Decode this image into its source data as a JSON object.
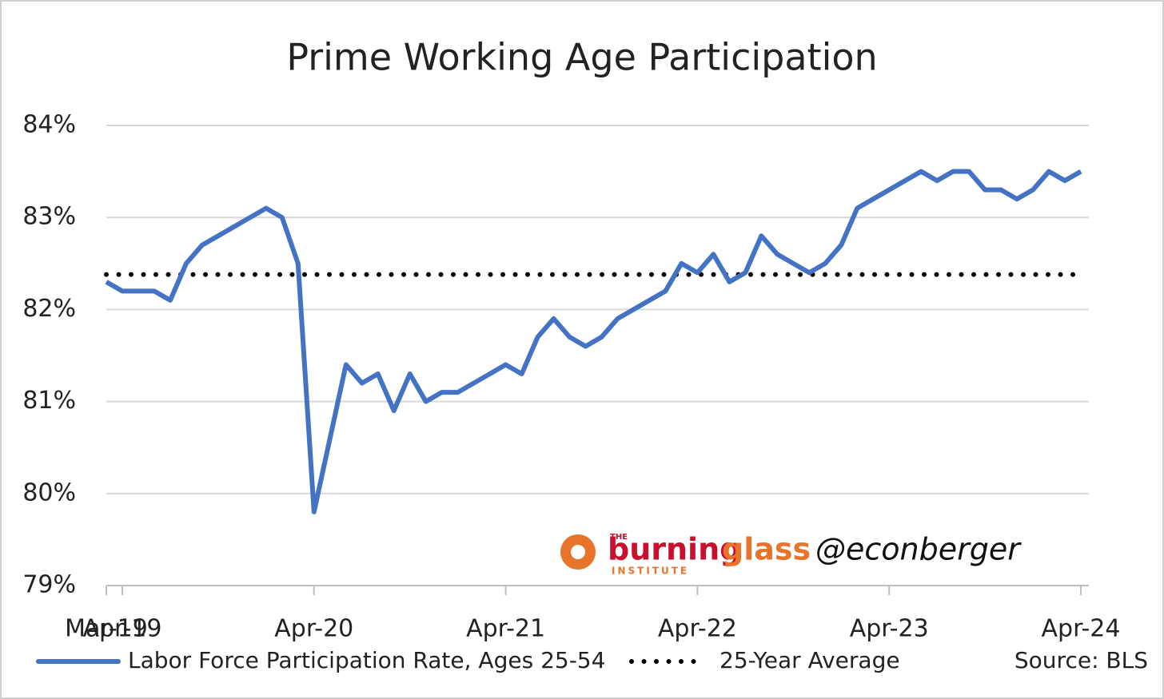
{
  "chart_data": {
    "type": "line",
    "title": "Prime Working Age Participation",
    "categories": [
      "Mar-19",
      "Apr-19",
      null,
      null,
      null,
      null,
      null,
      null,
      null,
      null,
      null,
      null,
      null,
      "Apr-20",
      null,
      null,
      null,
      null,
      null,
      null,
      null,
      null,
      null,
      null,
      null,
      "Apr-21",
      null,
      null,
      null,
      null,
      null,
      null,
      null,
      null,
      null,
      null,
      null,
      "Apr-22",
      null,
      null,
      null,
      null,
      null,
      null,
      null,
      null,
      null,
      null,
      null,
      "Apr-23",
      null,
      null,
      null,
      null,
      null,
      null,
      null,
      null,
      null,
      null,
      null,
      "Apr-24"
    ],
    "series": [
      {
        "name": "Labor Force Participation Rate, Ages 25-54",
        "color": "#4472c4",
        "values": [
          82.3,
          82.2,
          82.2,
          82.2,
          82.1,
          82.5,
          82.7,
          82.8,
          82.9,
          83.0,
          83.1,
          83.0,
          82.5,
          79.8,
          80.6,
          81.4,
          81.2,
          81.3,
          80.9,
          81.3,
          81.0,
          81.1,
          81.1,
          81.2,
          81.3,
          81.4,
          81.3,
          81.7,
          81.9,
          81.7,
          81.6,
          81.7,
          81.9,
          82.0,
          82.1,
          82.2,
          82.5,
          82.4,
          82.6,
          82.3,
          82.4,
          82.8,
          82.6,
          82.5,
          82.4,
          82.5,
          82.7,
          83.1,
          83.2,
          83.3,
          83.4,
          83.5,
          83.4,
          83.5,
          83.5,
          83.3,
          83.3,
          83.2,
          83.3,
          83.5,
          83.4,
          83.5
        ]
      }
    ],
    "average": {
      "name": "25-Year Average",
      "value": 82.38,
      "color": "#000000"
    },
    "ylim": [
      79,
      84
    ],
    "yticks": [
      {
        "value": 79,
        "label": "79%"
      },
      {
        "value": 80,
        "label": "80%"
      },
      {
        "value": 81,
        "label": "81%"
      },
      {
        "value": 82,
        "label": "82%"
      },
      {
        "value": 83,
        "label": "83%"
      },
      {
        "value": 84,
        "label": "84%"
      }
    ],
    "grid": true,
    "source": "Source: BLS",
    "watermark": {
      "the": "THE",
      "burning": "burning",
      "glass": "glass",
      "institute": "INSTITUTE",
      "handle": "@econberger"
    }
  }
}
